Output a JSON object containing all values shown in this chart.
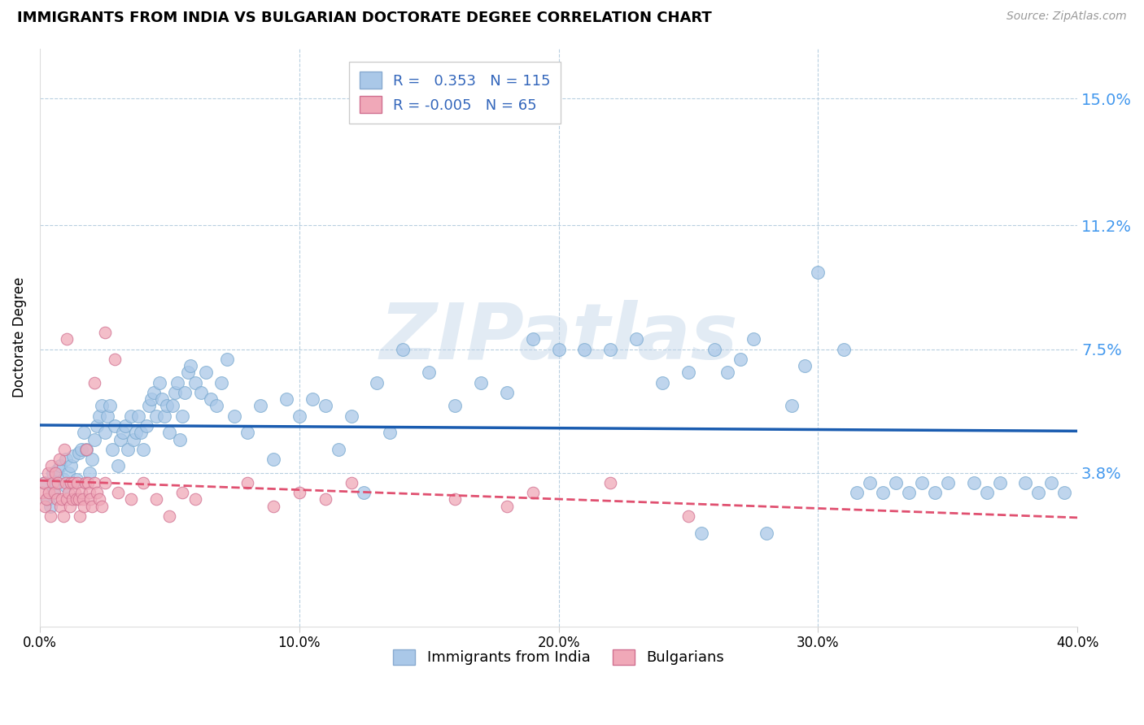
{
  "title": "IMMIGRANTS FROM INDIA VS BULGARIAN DOCTORATE DEGREE CORRELATION CHART",
  "source": "Source: ZipAtlas.com",
  "ylabel": "Doctorate Degree",
  "ytick_labels": [
    "3.8%",
    "7.5%",
    "11.2%",
    "15.0%"
  ],
  "ytick_values": [
    3.8,
    7.5,
    11.2,
    15.0
  ],
  "xlim": [
    0.0,
    40.0
  ],
  "ylim": [
    -0.8,
    16.5
  ],
  "watermark": "ZIPatlas",
  "india_color": "#aac8e8",
  "india_edge": "#7aaad0",
  "bulgaria_color": "#f0a8b8",
  "bulgaria_edge": "#d07090",
  "india_trend_color": "#1a5cb0",
  "bulgaria_trend_color": "#e05070",
  "india_points_x": [
    0.2,
    0.3,
    0.4,
    0.5,
    0.5,
    0.6,
    0.7,
    0.8,
    0.9,
    1.0,
    1.0,
    1.1,
    1.2,
    1.3,
    1.4,
    1.5,
    1.6,
    1.7,
    1.8,
    1.9,
    2.0,
    2.1,
    2.2,
    2.3,
    2.4,
    2.5,
    2.6,
    2.7,
    2.8,
    2.9,
    3.0,
    3.1,
    3.2,
    3.3,
    3.4,
    3.5,
    3.6,
    3.7,
    3.8,
    3.9,
    4.0,
    4.1,
    4.2,
    4.3,
    4.4,
    4.5,
    4.6,
    4.7,
    4.8,
    4.9,
    5.0,
    5.1,
    5.2,
    5.3,
    5.4,
    5.5,
    5.6,
    5.7,
    5.8,
    6.0,
    6.2,
    6.4,
    6.6,
    6.8,
    7.0,
    7.2,
    7.5,
    8.0,
    8.5,
    9.0,
    9.5,
    10.0,
    10.5,
    11.0,
    11.5,
    12.0,
    12.5,
    13.0,
    13.5,
    14.0,
    15.0,
    16.0,
    17.0,
    18.0,
    19.0,
    20.0,
    21.0,
    22.0,
    23.0,
    24.0,
    25.0,
    26.0,
    27.5,
    29.0,
    30.0,
    31.0,
    32.0,
    33.0,
    34.0,
    35.0,
    36.0,
    37.0,
    38.0,
    39.0,
    27.0,
    29.5,
    32.5,
    33.5,
    34.5,
    36.5,
    38.5,
    39.5,
    25.5,
    28.0,
    26.5,
    31.5
  ],
  "india_points_y": [
    3.5,
    3.0,
    2.8,
    3.8,
    3.2,
    3.5,
    3.9,
    4.0,
    3.6,
    3.4,
    4.2,
    3.8,
    4.0,
    4.3,
    3.6,
    4.4,
    4.5,
    5.0,
    4.5,
    3.8,
    4.2,
    4.8,
    5.2,
    5.5,
    5.8,
    5.0,
    5.5,
    5.8,
    4.5,
    5.2,
    4.0,
    4.8,
    5.0,
    5.2,
    4.5,
    5.5,
    4.8,
    5.0,
    5.5,
    5.0,
    4.5,
    5.2,
    5.8,
    6.0,
    6.2,
    5.5,
    6.5,
    6.0,
    5.5,
    5.8,
    5.0,
    5.8,
    6.2,
    6.5,
    4.8,
    5.5,
    6.2,
    6.8,
    7.0,
    6.5,
    6.2,
    6.8,
    6.0,
    5.8,
    6.5,
    7.2,
    5.5,
    5.0,
    5.8,
    4.2,
    6.0,
    5.5,
    6.0,
    5.8,
    4.5,
    5.5,
    3.2,
    6.5,
    5.0,
    7.5,
    6.8,
    5.8,
    6.5,
    6.2,
    7.8,
    7.5,
    7.5,
    7.5,
    7.8,
    6.5,
    6.8,
    7.5,
    7.8,
    5.8,
    9.8,
    7.5,
    3.5,
    3.5,
    3.5,
    3.5,
    3.5,
    3.5,
    3.5,
    3.5,
    7.2,
    7.0,
    3.2,
    3.2,
    3.2,
    3.2,
    3.2,
    3.2,
    2.0,
    2.0,
    6.8,
    3.2
  ],
  "bulgaria_points_x": [
    0.1,
    0.15,
    0.2,
    0.25,
    0.3,
    0.35,
    0.4,
    0.45,
    0.5,
    0.55,
    0.6,
    0.65,
    0.7,
    0.75,
    0.8,
    0.85,
    0.9,
    0.95,
    1.0,
    1.05,
    1.1,
    1.15,
    1.2,
    1.25,
    1.3,
    1.35,
    1.4,
    1.45,
    1.5,
    1.55,
    1.6,
    1.65,
    1.7,
    1.75,
    1.8,
    1.85,
    1.9,
    1.95,
    2.0,
    2.1,
    2.2,
    2.3,
    2.4,
    2.5,
    3.0,
    3.5,
    4.0,
    4.5,
    5.0,
    5.5,
    6.0,
    8.0,
    9.0,
    10.0,
    11.0,
    12.0,
    16.0,
    18.0,
    19.0,
    22.0,
    25.0,
    1.05,
    2.1,
    2.5,
    2.9
  ],
  "bulgaria_points_y": [
    3.2,
    3.5,
    2.8,
    3.0,
    3.8,
    3.2,
    2.5,
    4.0,
    3.5,
    3.2,
    3.8,
    3.0,
    3.5,
    4.2,
    2.8,
    3.0,
    2.5,
    4.5,
    3.5,
    3.0,
    3.2,
    2.8,
    3.5,
    3.0,
    3.5,
    3.2,
    3.0,
    3.5,
    3.0,
    2.5,
    3.2,
    3.0,
    2.8,
    3.5,
    4.5,
    3.5,
    3.2,
    3.0,
    2.8,
    3.5,
    3.2,
    3.0,
    2.8,
    3.5,
    3.2,
    3.0,
    3.5,
    3.0,
    2.5,
    3.2,
    3.0,
    3.5,
    2.8,
    3.2,
    3.0,
    3.5,
    3.0,
    2.8,
    3.2,
    3.5,
    2.5,
    7.8,
    6.5,
    8.0,
    7.2
  ]
}
